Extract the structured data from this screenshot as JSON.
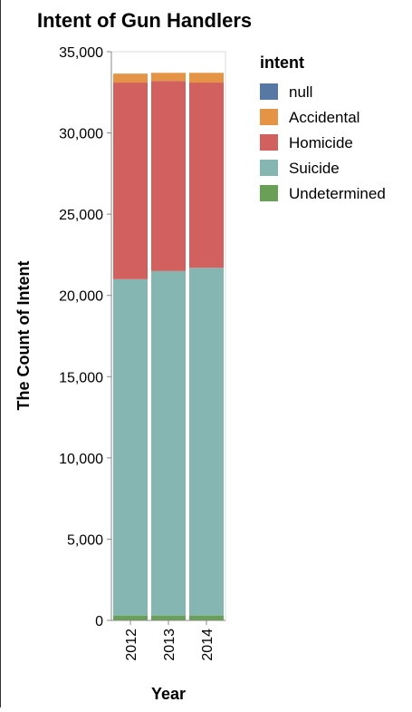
{
  "chart_data": {
    "type": "bar",
    "stacked": true,
    "title": "Intent of Gun Handlers",
    "xlabel": "Year",
    "ylabel": "The Count of Intent",
    "categories": [
      "2012",
      "2013",
      "2014"
    ],
    "ylim": [
      0,
      35000
    ],
    "yticks": [
      "0",
      "5,000",
      "10,000",
      "15,000",
      "20,000",
      "25,000",
      "30,000",
      "35,000"
    ],
    "legend": {
      "title": "intent",
      "placement": "right"
    },
    "series": [
      {
        "name": "Undetermined",
        "color": "#6a9f58",
        "values": [
          300,
          300,
          300
        ]
      },
      {
        "name": "Suicide",
        "color": "#85b6b2",
        "values": [
          20700,
          21200,
          21400
        ]
      },
      {
        "name": "Homicide",
        "color": "#d1605e",
        "values": [
          12100,
          11700,
          11400
        ]
      },
      {
        "name": "Accidental",
        "color": "#e49444",
        "values": [
          550,
          500,
          600
        ]
      },
      {
        "name": "null",
        "color": "#5778a4",
        "values": [
          1,
          0,
          0
        ]
      }
    ],
    "legend_order": [
      "null",
      "Accidental",
      "Homicide",
      "Suicide",
      "Undetermined"
    ]
  }
}
